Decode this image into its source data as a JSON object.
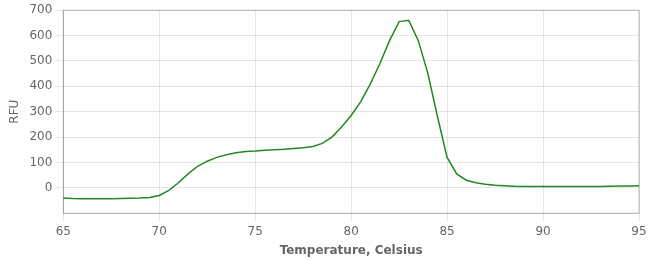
{
  "chart_data": {
    "type": "line",
    "xlabel": "Temperature, Celsius",
    "ylabel": "RFU",
    "x": [
      65.0,
      65.5,
      66.0,
      66.5,
      67.0,
      67.5,
      68.0,
      68.5,
      69.0,
      69.5,
      70.0,
      70.5,
      71.0,
      71.5,
      72.0,
      72.5,
      73.0,
      73.5,
      74.0,
      74.5,
      75.0,
      75.5,
      76.0,
      76.5,
      77.0,
      77.5,
      78.0,
      78.5,
      79.0,
      79.5,
      80.0,
      80.5,
      81.0,
      81.5,
      82.0,
      82.5,
      83.0,
      83.5,
      84.0,
      84.5,
      85.0,
      85.5,
      86.0,
      86.5,
      87.0,
      87.5,
      88.0,
      88.5,
      89.0,
      89.5,
      90.0,
      90.5,
      91.0,
      91.5,
      92.0,
      92.5,
      93.0,
      93.5,
      94.0,
      94.5,
      95.0
    ],
    "values": [
      -40,
      -42,
      -43,
      -43,
      -43,
      -43,
      -42,
      -41,
      -40,
      -38,
      -30,
      -10,
      20,
      55,
      85,
      105,
      120,
      130,
      138,
      143,
      145,
      148,
      150,
      152,
      155,
      158,
      163,
      175,
      200,
      240,
      285,
      340,
      410,
      490,
      580,
      655,
      660,
      580,
      450,
      280,
      120,
      55,
      30,
      20,
      14,
      10,
      8,
      6,
      5,
      5,
      5,
      5,
      5,
      5,
      5,
      5,
      5,
      6,
      7,
      7,
      8
    ],
    "color": "#228822",
    "xlim": [
      65,
      95
    ],
    "ylim": [
      -100,
      700
    ],
    "xticks": [
      65,
      70,
      75,
      80,
      85,
      90,
      95
    ],
    "yticks": [
      0,
      100,
      200,
      300,
      400,
      500,
      600,
      700
    ],
    "grid": true
  }
}
